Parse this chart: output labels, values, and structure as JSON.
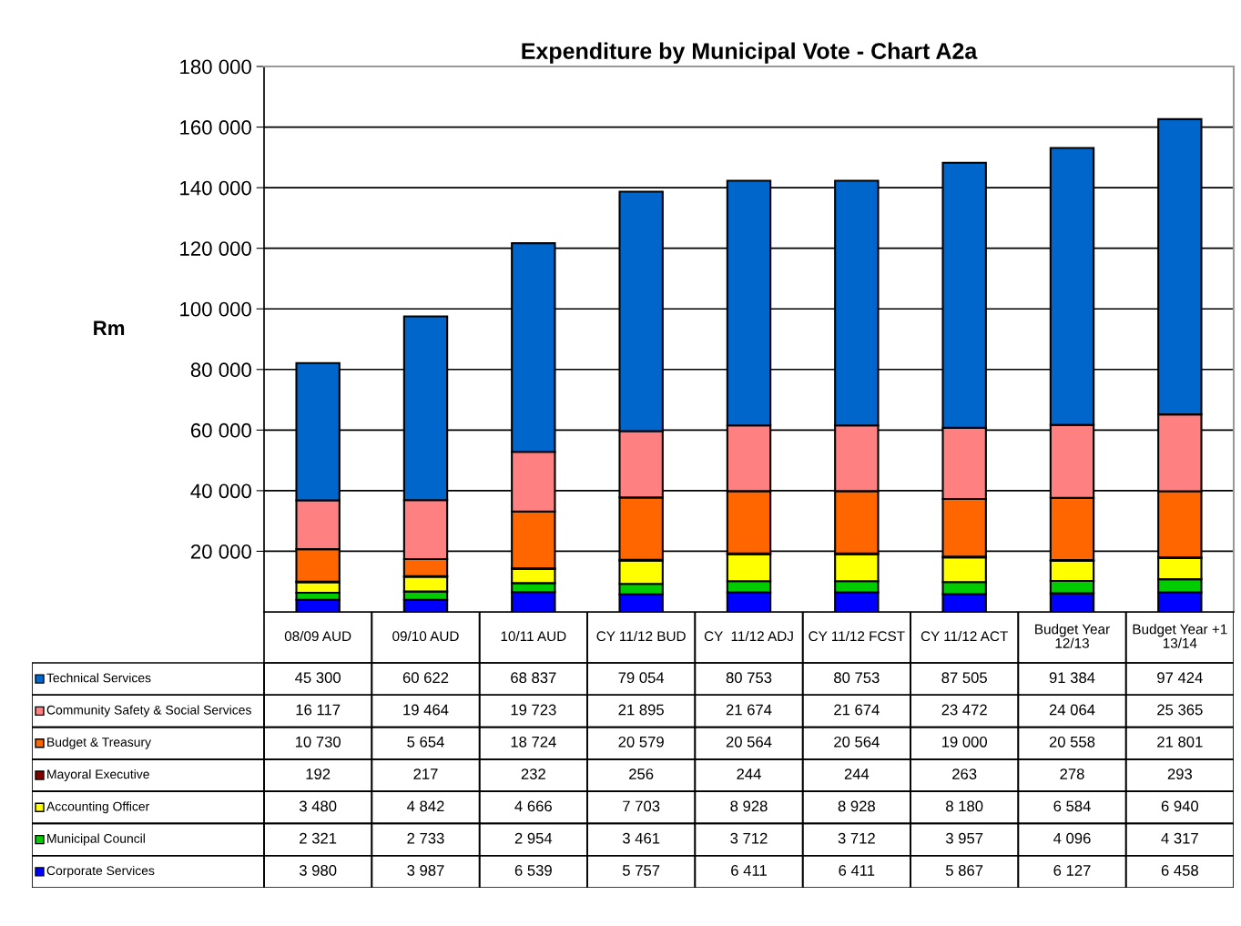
{
  "chart_data": {
    "type": "bar",
    "stacked": true,
    "title": "Expenditure by Municipal Vote - Chart A2a",
    "ylabel": "Rm",
    "categories": [
      "08/09 AUD",
      "09/10 AUD",
      "10/11 AUD",
      "CY 11/12 BUD",
      "CY  11/12 ADJ",
      "CY 11/12 FCST",
      "CY 11/12 ACT",
      "Budget Year\n12/13",
      "Budget Year +1\n13/14"
    ],
    "ylim": [
      0,
      180000
    ],
    "yticks": [
      {
        "value": 20000,
        "label": "20 000"
      },
      {
        "value": 40000,
        "label": "40 000"
      },
      {
        "value": 60000,
        "label": "60 000"
      },
      {
        "value": 80000,
        "label": "80 000"
      },
      {
        "value": 100000,
        "label": "100 000"
      },
      {
        "value": 120000,
        "label": "120 000"
      },
      {
        "value": 140000,
        "label": "140 000"
      },
      {
        "value": 160000,
        "label": "160 000"
      },
      {
        "value": 180000,
        "label": "180 000"
      }
    ],
    "grid": "y",
    "legend": "bottom",
    "series": [
      {
        "name": "Corporate Services",
        "color": "#0000ff",
        "values": [
          3980,
          3987,
          6539,
          5757,
          6411,
          6411,
          5867,
          6127,
          6458
        ],
        "value_labels": [
          "3 980",
          "3 987",
          "6 539",
          "5 757",
          "6 411",
          "6 411",
          "5 867",
          "6 127",
          "6 458"
        ]
      },
      {
        "name": "Municipal Council",
        "color": "#00cc00",
        "values": [
          2321,
          2733,
          2954,
          3461,
          3712,
          3712,
          3957,
          4096,
          4317
        ],
        "value_labels": [
          "2 321",
          "2 733",
          "2 954",
          "3 461",
          "3 712",
          "3 712",
          "3 957",
          "4 096",
          "4 317"
        ]
      },
      {
        "name": "Accounting Officer",
        "color": "#ffff00",
        "values": [
          3480,
          4842,
          4666,
          7703,
          8928,
          8928,
          8180,
          6584,
          6940
        ],
        "value_labels": [
          "3 480",
          "4 842",
          "4 666",
          "7 703",
          "8 928",
          "8 928",
          "8 180",
          "6 584",
          "6 940"
        ]
      },
      {
        "name": "Mayoral Executive",
        "color": "#800000",
        "values": [
          192,
          217,
          232,
          256,
          244,
          244,
          263,
          278,
          293
        ],
        "value_labels": [
          "192",
          "217",
          "232",
          "256",
          "244",
          "244",
          "263",
          "278",
          "293"
        ]
      },
      {
        "name": "Budget & Treasury",
        "color": "#ff6600",
        "values": [
          10730,
          5654,
          18724,
          20579,
          20564,
          20564,
          19000,
          20558,
          21801
        ],
        "value_labels": [
          "10 730",
          "5 654",
          "18 724",
          "20 579",
          "20 564",
          "20 564",
          "19 000",
          "20 558",
          "21 801"
        ]
      },
      {
        "name": "Community Safety & Social Services",
        "color": "#ff8080",
        "values": [
          16117,
          19464,
          19723,
          21895,
          21674,
          21674,
          23472,
          24064,
          25365
        ],
        "value_labels": [
          "16 117",
          "19 464",
          "19 723",
          "21 895",
          "21 674",
          "21 674",
          "23 472",
          "24 064",
          "25 365"
        ]
      },
      {
        "name": "Technical Services",
        "color": "#0066cc",
        "values": [
          45300,
          60622,
          68837,
          79054,
          80753,
          80753,
          87505,
          91384,
          97424
        ],
        "value_labels": [
          "45 300",
          "60 622",
          "68 837",
          "79 054",
          "80 753",
          "80 753",
          "87 505",
          "91 384",
          "97 424"
        ]
      }
    ]
  }
}
